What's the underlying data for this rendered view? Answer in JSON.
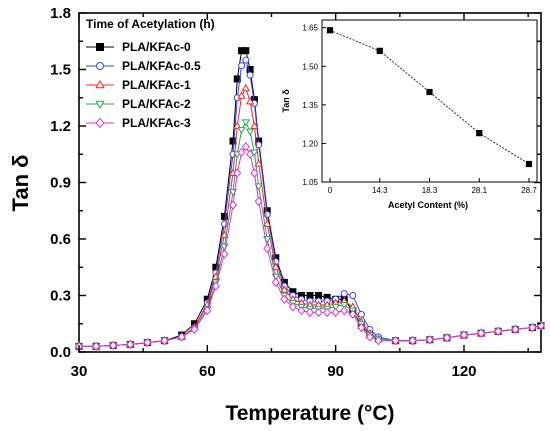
{
  "chart_data": [
    {
      "type": "line",
      "xlabel": "Temperature (°C)",
      "ylabel": "Tan δ",
      "xlim": [
        30,
        138
      ],
      "ylim": [
        0.0,
        1.8
      ],
      "xticks": [
        30,
        60,
        90,
        120
      ],
      "yticks": [
        0.0,
        0.3,
        0.6,
        0.9,
        1.2,
        1.5,
        1.8
      ],
      "xtick_labels": [
        "30",
        "60",
        "90",
        "120"
      ],
      "ytick_labels": [
        "0.0",
        "0.3",
        "0.6",
        "0.9",
        "1.2",
        "1.5",
        "1.8"
      ],
      "legend": {
        "title": "Time of Acetylation (h)",
        "placement": "top-left"
      },
      "series": [
        {
          "name": "PLA/KFAc-0",
          "color": "#000000",
          "marker": "filled-square",
          "x": [
            30,
            34,
            38,
            42,
            46,
            50,
            54,
            57,
            60,
            62,
            64,
            66,
            67,
            68,
            69,
            70,
            71,
            72,
            74,
            76,
            78,
            80,
            82,
            84,
            86,
            88,
            90,
            92,
            94,
            96,
            98,
            100,
            104,
            108,
            112,
            116,
            120,
            124,
            128,
            132,
            136,
            138
          ],
          "y": [
            0.03,
            0.03,
            0.035,
            0.04,
            0.05,
            0.06,
            0.09,
            0.15,
            0.28,
            0.45,
            0.72,
            1.12,
            1.45,
            1.6,
            1.6,
            1.5,
            1.34,
            1.12,
            0.75,
            0.5,
            0.37,
            0.32,
            0.3,
            0.3,
            0.3,
            0.29,
            0.28,
            0.28,
            0.22,
            0.14,
            0.09,
            0.07,
            0.06,
            0.06,
            0.065,
            0.075,
            0.09,
            0.1,
            0.11,
            0.12,
            0.13,
            0.14
          ]
        },
        {
          "name": "PLA/KFAc-0.5",
          "color": "#3344ff",
          "marker": "open-circle",
          "x": [
            30,
            34,
            38,
            42,
            46,
            50,
            54,
            57,
            60,
            62,
            64,
            66,
            67,
            68,
            69,
            70,
            71,
            72,
            74,
            76,
            78,
            80,
            82,
            84,
            86,
            88,
            90,
            92,
            94,
            96,
            98,
            100,
            104,
            108,
            112,
            116,
            120,
            124,
            128,
            132,
            136,
            138
          ],
          "y": [
            0.03,
            0.03,
            0.035,
            0.04,
            0.05,
            0.06,
            0.08,
            0.13,
            0.26,
            0.42,
            0.68,
            1.05,
            1.35,
            1.52,
            1.55,
            1.47,
            1.32,
            1.1,
            0.73,
            0.48,
            0.35,
            0.3,
            0.28,
            0.27,
            0.27,
            0.27,
            0.28,
            0.31,
            0.3,
            0.2,
            0.12,
            0.08,
            0.06,
            0.06,
            0.065,
            0.075,
            0.09,
            0.1,
            0.11,
            0.12,
            0.13,
            0.14
          ]
        },
        {
          "name": "PLA/KFAc-1",
          "color": "#ff2222",
          "marker": "open-triangle-up",
          "x": [
            30,
            34,
            38,
            42,
            46,
            50,
            54,
            57,
            60,
            62,
            64,
            66,
            67,
            68,
            69,
            70,
            71,
            72,
            74,
            76,
            78,
            80,
            82,
            84,
            86,
            88,
            90,
            92,
            94,
            96,
            98,
            100,
            104,
            108,
            112,
            116,
            120,
            124,
            128,
            132,
            136,
            138
          ],
          "y": [
            0.03,
            0.03,
            0.035,
            0.04,
            0.05,
            0.06,
            0.08,
            0.13,
            0.25,
            0.4,
            0.62,
            0.95,
            1.2,
            1.36,
            1.4,
            1.33,
            1.2,
            1.0,
            0.68,
            0.45,
            0.33,
            0.28,
            0.26,
            0.25,
            0.25,
            0.25,
            0.26,
            0.27,
            0.24,
            0.16,
            0.1,
            0.07,
            0.06,
            0.06,
            0.065,
            0.075,
            0.09,
            0.1,
            0.11,
            0.12,
            0.13,
            0.14
          ]
        },
        {
          "name": "PLA/KFAc-2",
          "color": "#22aa55",
          "marker": "open-triangle-down",
          "x": [
            30,
            34,
            38,
            42,
            46,
            50,
            54,
            57,
            60,
            62,
            64,
            66,
            67,
            68,
            69,
            70,
            71,
            72,
            74,
            76,
            78,
            80,
            82,
            84,
            86,
            88,
            90,
            92,
            94,
            96,
            98,
            100,
            104,
            108,
            112,
            116,
            120,
            124,
            128,
            132,
            136,
            138
          ],
          "y": [
            0.03,
            0.03,
            0.035,
            0.04,
            0.05,
            0.06,
            0.08,
            0.12,
            0.23,
            0.37,
            0.56,
            0.85,
            1.05,
            1.18,
            1.22,
            1.17,
            1.06,
            0.88,
            0.6,
            0.4,
            0.3,
            0.26,
            0.24,
            0.23,
            0.23,
            0.23,
            0.24,
            0.25,
            0.22,
            0.15,
            0.09,
            0.07,
            0.06,
            0.06,
            0.065,
            0.075,
            0.09,
            0.1,
            0.11,
            0.12,
            0.13,
            0.14
          ]
        },
        {
          "name": "PLA/KFAc-3",
          "color": "#dd33dd",
          "marker": "open-diamond",
          "x": [
            30,
            34,
            38,
            42,
            46,
            50,
            54,
            57,
            60,
            62,
            64,
            66,
            67,
            68,
            69,
            70,
            71,
            72,
            74,
            76,
            78,
            80,
            82,
            84,
            86,
            88,
            90,
            92,
            94,
            96,
            98,
            100,
            104,
            108,
            112,
            116,
            120,
            124,
            128,
            132,
            136,
            138
          ],
          "y": [
            0.03,
            0.03,
            0.035,
            0.04,
            0.05,
            0.06,
            0.08,
            0.12,
            0.22,
            0.35,
            0.52,
            0.78,
            0.95,
            1.06,
            1.09,
            1.05,
            0.95,
            0.8,
            0.55,
            0.37,
            0.28,
            0.24,
            0.22,
            0.21,
            0.21,
            0.21,
            0.21,
            0.22,
            0.2,
            0.13,
            0.08,
            0.06,
            0.06,
            0.06,
            0.065,
            0.075,
            0.09,
            0.1,
            0.11,
            0.12,
            0.13,
            0.14
          ]
        }
      ]
    },
    {
      "type": "line",
      "placement": "inset-top-right",
      "xlabel": "Acetyl Content (%)",
      "ylabel": "Tan δ",
      "categories": [
        "0",
        "14.3",
        "18.3",
        "28.1",
        "28.7"
      ],
      "values": [
        1.64,
        1.56,
        1.4,
        1.24,
        1.12
      ],
      "ylim": [
        1.05,
        1.68
      ],
      "yticks": [
        1.05,
        1.2,
        1.35,
        1.5,
        1.65
      ],
      "ytick_labels": [
        "1.05",
        "1.20",
        "1.35",
        "1.50",
        "1.65"
      ],
      "color": "#000000",
      "marker": "filled-square"
    }
  ]
}
